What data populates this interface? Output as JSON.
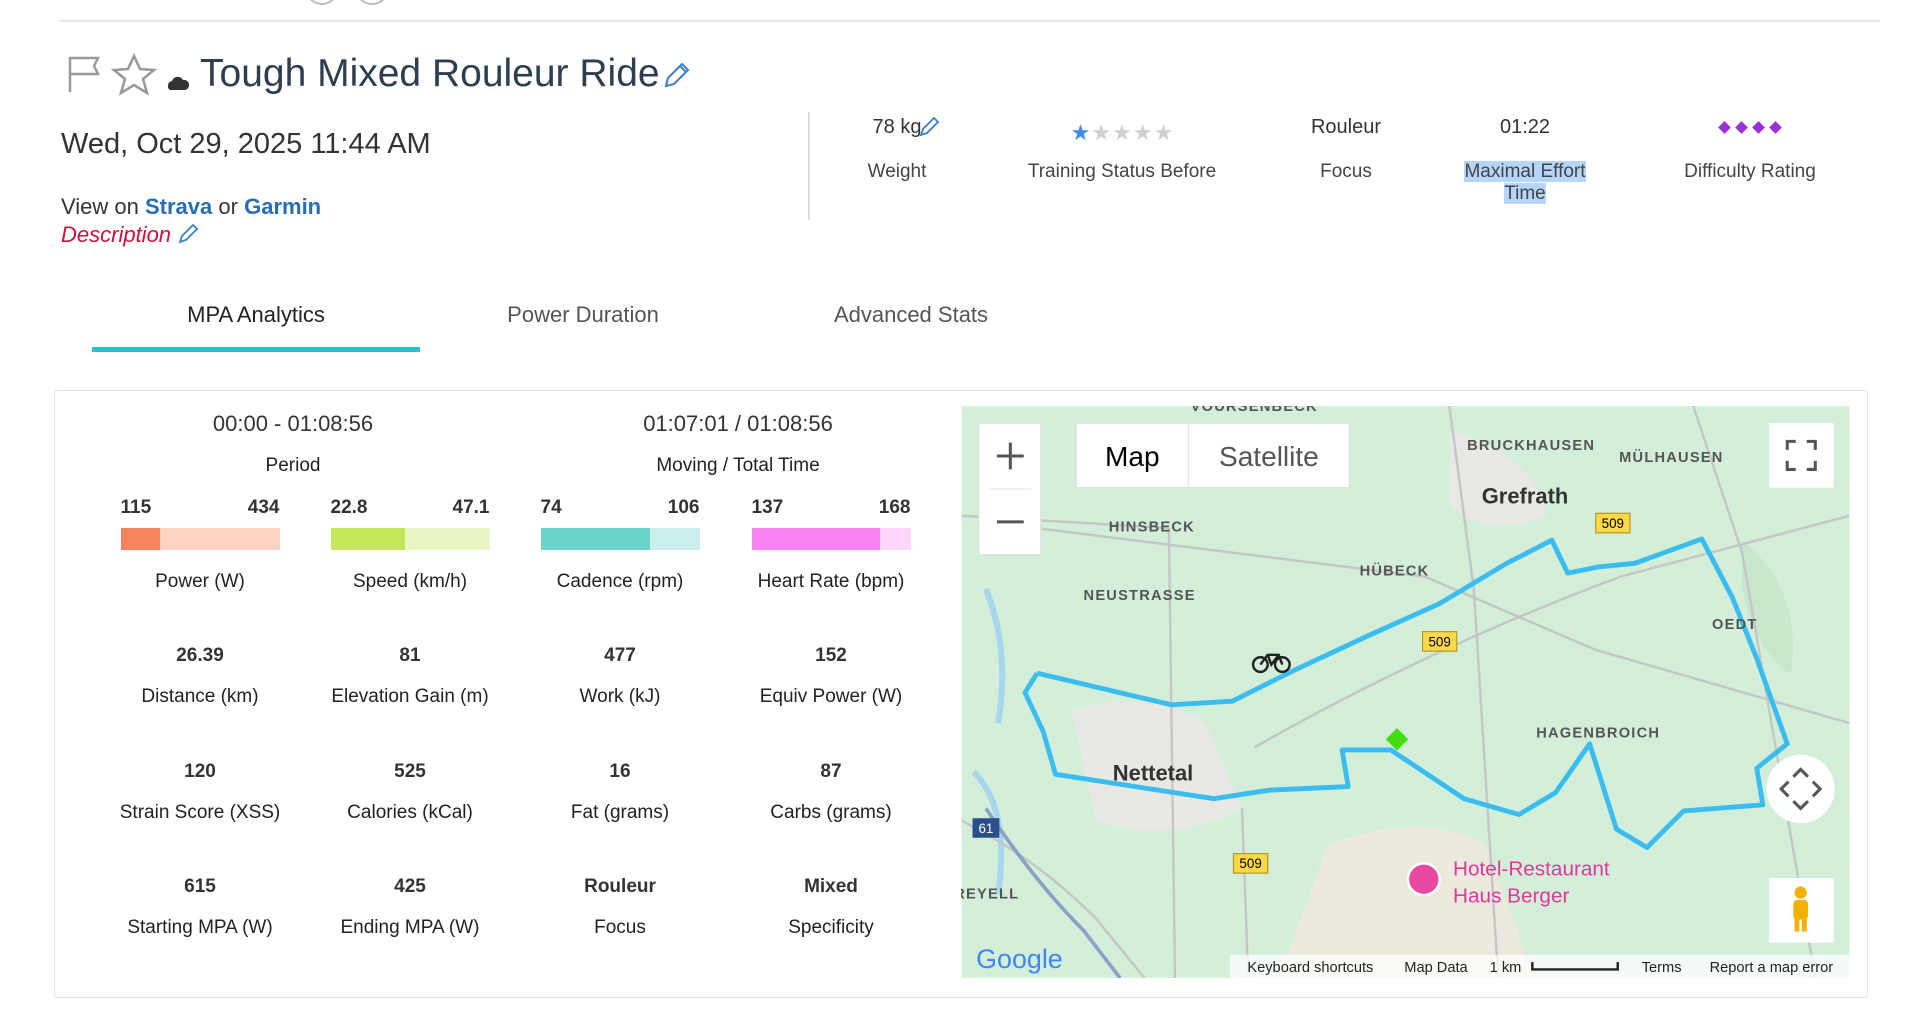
{
  "header": {
    "title": "Tough Mixed Rouleur Ride",
    "date": "Wed, Oct 29, 2025 11:44 AM",
    "view_prefix": "View on",
    "strava": "Strava",
    "or": "or",
    "garmin": "Garmin",
    "description": "Description"
  },
  "summary": [
    {
      "value": "78 kg",
      "label": "Weight"
    },
    {
      "rating": 1,
      "max": 5,
      "label": "Training Status Before"
    },
    {
      "value": "Rouleur",
      "label": "Focus"
    },
    {
      "value": "01:22",
      "label": "Maximal Effort Time"
    },
    {
      "rating": 4,
      "label": "Difficulty Rating"
    }
  ],
  "tabs": [
    "MPA Analytics",
    "Power Duration",
    "Advanced Stats"
  ],
  "active_tab": 0,
  "analytics": {
    "period": {
      "value": "00:00 - 01:08:56",
      "label": "Period"
    },
    "moving": {
      "value": "01:07:01 / 01:08:56",
      "label": "Moving / Total Time"
    },
    "ranges": [
      {
        "min": 115,
        "max": 434,
        "average": 195,
        "label": "Power (W)",
        "color": "#f7845e",
        "light": "#fdd2c3"
      },
      {
        "min": 22.8,
        "max": 47.1,
        "average": 34.2,
        "label": "Speed (km/h)",
        "color": "#c3e65a",
        "light": "#e9f6c4"
      },
      {
        "min": 74,
        "max": 106,
        "average": 96,
        "label": "Cadence (rpm)",
        "color": "#6dd4cc",
        "light": "#cbefec"
      },
      {
        "min": 137,
        "max": 168,
        "average": 162,
        "label": "Heart Rate (bpm)",
        "color": "#fb84f3",
        "light": "#fdd6f9"
      }
    ],
    "stats": [
      [
        {
          "value": 26.39,
          "label": "Distance (km)"
        },
        {
          "value": 81,
          "label": "Elevation Gain (m)"
        },
        {
          "value": 477,
          "label": "Work (kJ)"
        },
        {
          "value": 152,
          "label": "Equiv Power (W)"
        }
      ],
      [
        {
          "value": 120,
          "label": "Strain Score (XSS)"
        },
        {
          "value": 525,
          "label": "Calories (kCal)"
        },
        {
          "value": 16,
          "label": "Fat (grams)"
        },
        {
          "value": 87,
          "label": "Carbs (grams)"
        }
      ],
      [
        {
          "value": 615,
          "label": "Starting MPA (W)"
        },
        {
          "value": 425,
          "label": "Ending MPA (W)"
        },
        {
          "value": "Rouleur",
          "label": "Focus"
        },
        {
          "value": "Mixed",
          "label": "Specificity"
        }
      ]
    ]
  },
  "map": {
    "buttons": [
      "Map",
      "Satellite"
    ],
    "labels": [
      "VOURSENBECK",
      "BRUCKHAUSEN",
      "MÜLHAUSEN",
      "Grefrath",
      "HINSBECK",
      "HÜBECK",
      "NEUSTRASSE",
      "OEDT",
      "HAGENBROICH",
      "Nettetal",
      "REYELL"
    ],
    "poi": [
      "Hotel-Restaurant",
      "Haus Berger"
    ],
    "roads": [
      "509",
      "509",
      "509",
      "61"
    ],
    "footer": [
      "Keyboard shortcuts",
      "Map Data",
      "1 km",
      "Terms",
      "Report a map error"
    ],
    "logo": "Google"
  }
}
